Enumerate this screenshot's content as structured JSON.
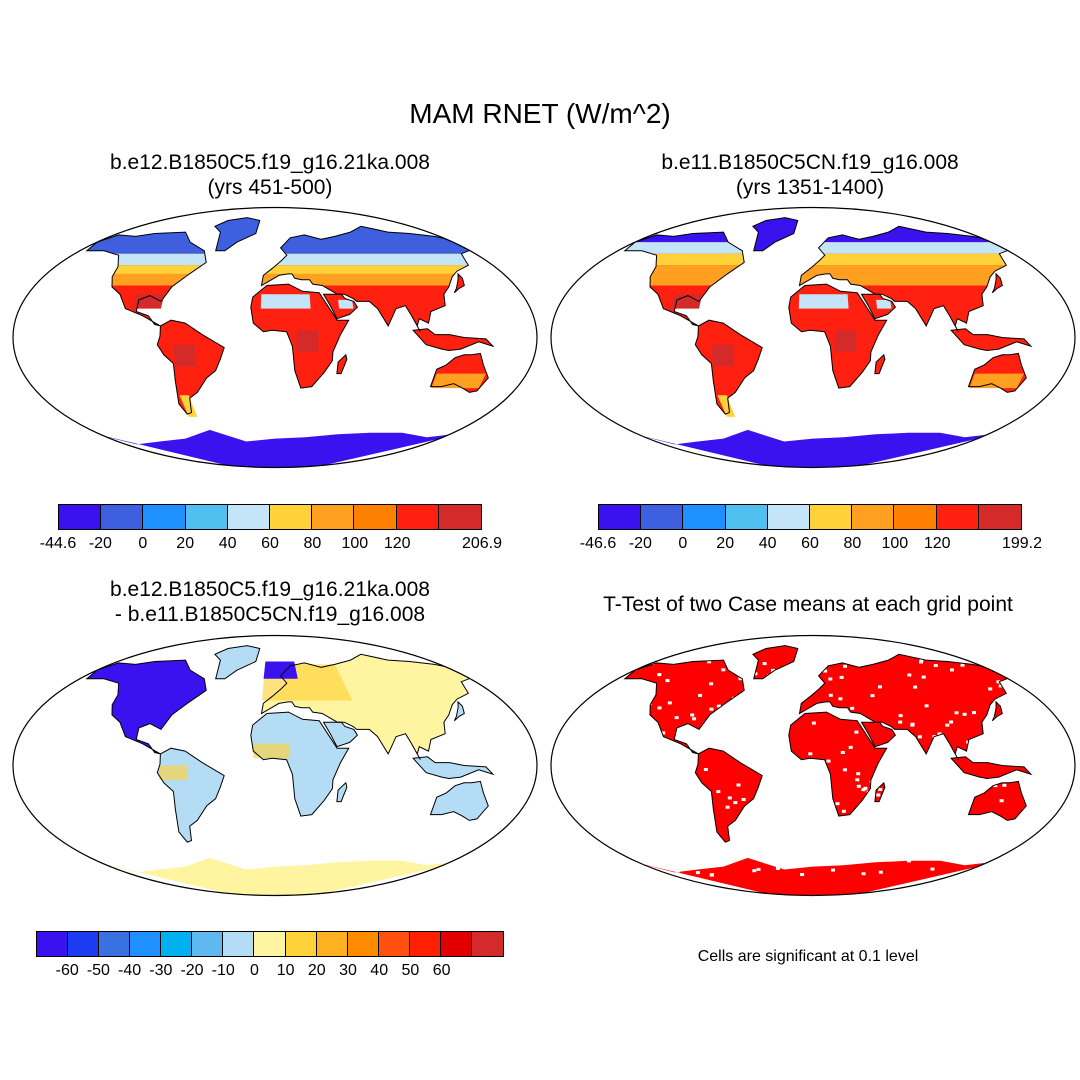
{
  "title": "MAM RNET (W/m^2)",
  "panels": [
    {
      "title_line1": "b.e12.B1850C5.f19_g16.21ka.008",
      "title_line2": "(yrs 451-500)",
      "colorbar": {
        "colors": [
          "#3a12f0",
          "#3e5fe0",
          "#1e90ff",
          "#50c0f0",
          "#c4e4f8",
          "#ffd23a",
          "#ffa020",
          "#ff7f00",
          "#ff2010",
          "#d42a2a"
        ],
        "labels": [
          "-44.6",
          "-20",
          "0",
          "20",
          "40",
          "60",
          "80",
          "100",
          "120",
          "206.9"
        ]
      }
    },
    {
      "title_line1": "b.e11.B1850C5CN.f19_g16.008",
      "title_line2": "(yrs 1351-1400)",
      "colorbar": {
        "colors": [
          "#3a12f0",
          "#3e5fe0",
          "#1e90ff",
          "#50c0f0",
          "#c4e4f8",
          "#ffd23a",
          "#ffa020",
          "#ff7f00",
          "#ff2010",
          "#d42a2a"
        ],
        "labels": [
          "-46.6",
          "-20",
          "0",
          "20",
          "40",
          "60",
          "80",
          "100",
          "120",
          "199.2"
        ]
      }
    },
    {
      "title_line1": "b.e12.B1850C5.f19_g16.21ka.008",
      "title_line2": "- b.e11.B1850C5CN.f19_g16.008",
      "colorbar": {
        "colors": [
          "#3a12f0",
          "#1c3cf0",
          "#3a70e0",
          "#1e90ff",
          "#00b0f0",
          "#60b8f0",
          "#b4dcf4",
          "#fff4a0",
          "#ffd23a",
          "#ffb020",
          "#ff8c00",
          "#ff5010",
          "#ff2000",
          "#e00000",
          "#d42a2a"
        ],
        "labels": [
          "-60",
          "-50",
          "-40",
          "-30",
          "-20",
          "-10",
          "0",
          "10",
          "20",
          "30",
          "40",
          "50",
          "60"
        ]
      }
    },
    {
      "title_line1": "T-Test of two Case means at each grid point",
      "note": "Cells are significant at 0.1 level"
    }
  ],
  "palette": {
    "cold": "#3a12f0",
    "cool": "#3e5fe0",
    "light": "#c4e4f8",
    "yellow": "#ffd23a",
    "orange": "#ffa020",
    "red": "#ff2010",
    "darkred": "#d42a2a",
    "diff_blue": "#3a12f0",
    "diff_lightblue": "#b4dcf4",
    "diff_yellow": "#fff4a0",
    "diff_gold": "#ffd23a",
    "sig_red": "#ff0000"
  }
}
